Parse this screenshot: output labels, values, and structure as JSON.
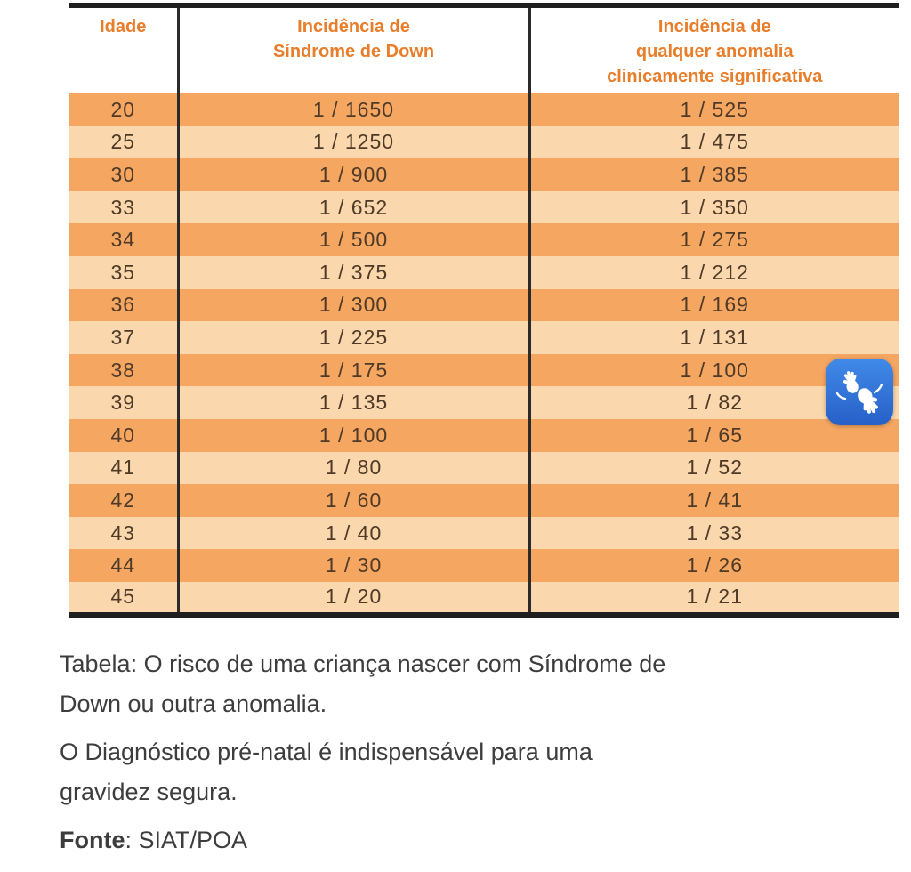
{
  "table": {
    "columns": [
      {
        "id": "idade",
        "lines": [
          "Idade"
        ]
      },
      {
        "id": "down",
        "lines": [
          "Incidência de",
          "Síndrome de Down"
        ]
      },
      {
        "id": "anomalia",
        "lines": [
          "Incidência de",
          "qualquer anomalia",
          "clinicamente significativa"
        ]
      }
    ],
    "rows": [
      {
        "idade": "20",
        "down": "1 / 1650",
        "anomalia": "1 / 525"
      },
      {
        "idade": "25",
        "down": "1 / 1250",
        "anomalia": "1 / 475"
      },
      {
        "idade": "30",
        "down": "1 / 900",
        "anomalia": "1 / 385"
      },
      {
        "idade": "33",
        "down": "1 / 652",
        "anomalia": "1 / 350"
      },
      {
        "idade": "34",
        "down": "1 / 500",
        "anomalia": "1 / 275"
      },
      {
        "idade": "35",
        "down": "1 / 375",
        "anomalia": "1 / 212"
      },
      {
        "idade": "36",
        "down": "1 / 300",
        "anomalia": "1 / 169"
      },
      {
        "idade": "37",
        "down": "1 / 225",
        "anomalia": "1 / 131"
      },
      {
        "idade": "38",
        "down": "1 / 175",
        "anomalia": "1 / 100"
      },
      {
        "idade": "39",
        "down": "1 / 135",
        "anomalia": "1 / 82"
      },
      {
        "idade": "40",
        "down": "1 / 100",
        "anomalia": "1 / 65"
      },
      {
        "idade": "41",
        "down": "1 / 80",
        "anomalia": "1 / 52"
      },
      {
        "idade": "42",
        "down": "1 / 60",
        "anomalia": "1 / 41"
      },
      {
        "idade": "43",
        "down": "1 / 40",
        "anomalia": "1 / 33"
      },
      {
        "idade": "44",
        "down": "1 / 30",
        "anomalia": "1 / 26"
      },
      {
        "idade": "45",
        "down": "1 / 20",
        "anomalia": "1 / 21"
      }
    ],
    "colors": {
      "row_dark": "#F5A661",
      "row_light": "#FBD7AD",
      "header_text": "#E87D2A",
      "cell_text": "#4E3A27",
      "border": "#1F1F1F"
    }
  },
  "captions": {
    "tabela_lines": [
      "Tabela: O risco de uma criança nascer com Síndrome de",
      "Down ou outra anomalia."
    ],
    "diagnostico_lines": [
      "O Diagnóstico pré-natal é indispensável para uma",
      "gravidez segura."
    ],
    "fonte_label": "Fonte",
    "fonte_value": ": SIAT/POA"
  },
  "accessibility_widget": {
    "icon": "sign-language-hands",
    "blue_top": "#418AE8",
    "blue_bottom": "#2660C8"
  }
}
